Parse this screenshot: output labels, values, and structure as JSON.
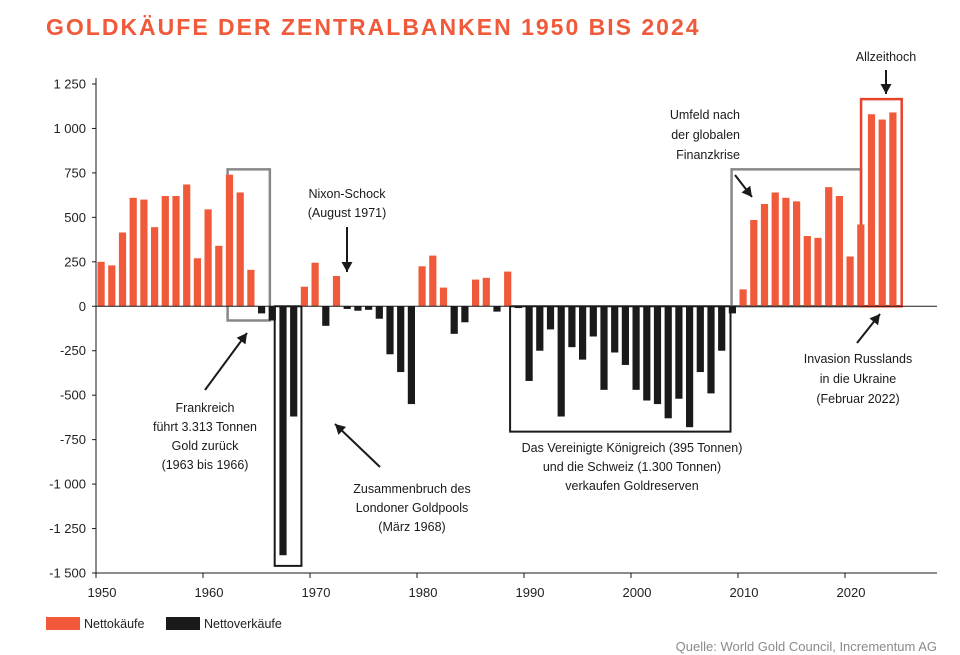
{
  "chart_data": {
    "type": "bar",
    "title": "GOLDKÄUFE DER ZENTRALBANKEN 1950 BIS 2024",
    "xlabel": "",
    "ylabel": "",
    "ylim": [
      -1500,
      1250
    ],
    "xlim": [
      1950,
      2025
    ],
    "x_ticks": [
      "1950",
      "1960",
      "1970",
      "1980",
      "1990",
      "2000",
      "2010",
      "2020"
    ],
    "y_ticks": [
      {
        "value": 1250,
        "label": "1 250"
      },
      {
        "value": 1000,
        "label": "1 000"
      },
      {
        "value": 750,
        "label": "750"
      },
      {
        "value": 500,
        "label": "500"
      },
      {
        "value": 250,
        "label": "250"
      },
      {
        "value": 0,
        "label": "0"
      },
      {
        "value": -250,
        "label": "-250"
      },
      {
        "value": -500,
        "label": "-500"
      },
      {
        "value": -750,
        "label": "-750"
      },
      {
        "value": -1000,
        "label": "-1 000"
      },
      {
        "value": -1250,
        "label": "-1 250"
      },
      {
        "value": -1500,
        "label": "-1 500"
      }
    ],
    "years": [
      1950,
      1951,
      1952,
      1953,
      1954,
      1955,
      1956,
      1957,
      1958,
      1959,
      1960,
      1961,
      1962,
      1963,
      1964,
      1965,
      1966,
      1967,
      1968,
      1969,
      1970,
      1971,
      1972,
      1973,
      1974,
      1975,
      1976,
      1977,
      1978,
      1979,
      1980,
      1981,
      1982,
      1983,
      1984,
      1985,
      1986,
      1987,
      1988,
      1989,
      1990,
      1991,
      1992,
      1993,
      1994,
      1995,
      1996,
      1997,
      1998,
      1999,
      2000,
      2001,
      2002,
      2003,
      2004,
      2005,
      2006,
      2007,
      2008,
      2009,
      2010,
      2011,
      2012,
      2013,
      2014,
      2015,
      2016,
      2017,
      2018,
      2019,
      2020,
      2021,
      2022,
      2023,
      2024
    ],
    "values": [
      250,
      230,
      415,
      610,
      600,
      445,
      620,
      620,
      685,
      270,
      545,
      340,
      740,
      640,
      205,
      -40,
      -80,
      -1400,
      -620,
      110,
      245,
      -110,
      170,
      -15,
      -25,
      -20,
      -70,
      -270,
      -370,
      -550,
      225,
      285,
      105,
      -155,
      -90,
      150,
      160,
      -30,
      195,
      -10,
      -420,
      -250,
      -130,
      -620,
      -230,
      -300,
      -170,
      -470,
      -260,
      -330,
      -470,
      -530,
      -550,
      -630,
      -520,
      -680,
      -370,
      -490,
      -250,
      -40,
      95,
      485,
      575,
      640,
      610,
      590,
      395,
      385,
      670,
      620,
      280,
      460,
      1080,
      1050,
      1090
    ],
    "series": [
      {
        "name": "Nettokäufe",
        "color": "#f05a3a"
      },
      {
        "name": "Nettoverkäufe",
        "color": "#1a1a1a"
      }
    ],
    "legend_position": "bottom-left",
    "annotations": [
      {
        "id": "frankreich",
        "lines": [
          "Frankreich",
          "führt 3.313 Tonnen",
          "Gold zurück",
          "(1963 bis 1966)"
        ]
      },
      {
        "id": "london",
        "lines": [
          "Zusammenbruch des",
          "Londoner Goldpools",
          "(März 1968)"
        ]
      },
      {
        "id": "nixon",
        "lines": [
          "Nixon-Schock",
          "(August 1971)"
        ]
      },
      {
        "id": "uk_ch",
        "lines": [
          "Das Vereinigte Königreich (395 Tonnen)",
          "und die Schweiz (1.300 Tonnen)",
          "verkaufen Goldreserven"
        ]
      },
      {
        "id": "finanzkrise",
        "lines": [
          "Umfeld nach",
          "der globalen",
          "Finanzkrise"
        ]
      },
      {
        "id": "allzeithoch",
        "lines": [
          "Allzeithoch"
        ]
      },
      {
        "id": "russland",
        "lines": [
          "Invasion Russlands",
          "in die Ukraine",
          "(Februar 2022)"
        ]
      }
    ]
  },
  "colors": {
    "buy": "#f05a3a",
    "sell": "#1a1a1a",
    "title": "#f05a3a",
    "frame": "#888888",
    "frame_red": "#e8432a"
  },
  "source": "Quelle: World Gold Council, Incrementum AG"
}
